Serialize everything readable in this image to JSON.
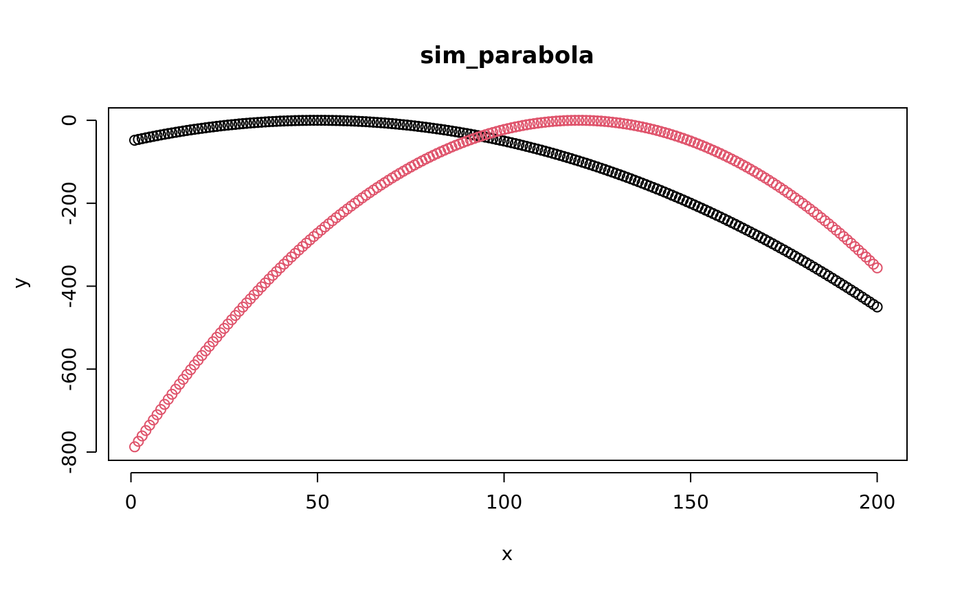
{
  "chart_data": {
    "type": "scatter",
    "title": "sim_parabola",
    "xlabel": "x",
    "ylabel": "y",
    "xlim": [
      -6,
      208
    ],
    "ylim": [
      -820,
      30
    ],
    "xticks": [
      0,
      50,
      100,
      150,
      200
    ],
    "yticks": [
      0,
      -200,
      -400,
      -600,
      -800
    ],
    "grid": false,
    "legend": "none",
    "marker": "open-circle",
    "series": [
      {
        "color": "#000000",
        "x_from": 1,
        "x_to": 200,
        "x_step": 1,
        "formula": "y = -0.02 * (x - 50)^2",
        "values_sample": [
          [
            1,
            -48
          ],
          [
            50,
            0
          ],
          [
            100,
            -50
          ],
          [
            150,
            -200
          ],
          [
            200,
            -450
          ]
        ]
      },
      {
        "color": "#DF536B",
        "x_from": 1,
        "x_to": 200,
        "x_step": 1,
        "formula": "y = -0.0556 * (x - 120)^2",
        "values_sample": [
          [
            1,
            -788
          ],
          [
            50,
            -272
          ],
          [
            100,
            -22
          ],
          [
            120,
            0
          ],
          [
            150,
            -50
          ],
          [
            200,
            -356
          ]
        ]
      }
    ]
  }
}
